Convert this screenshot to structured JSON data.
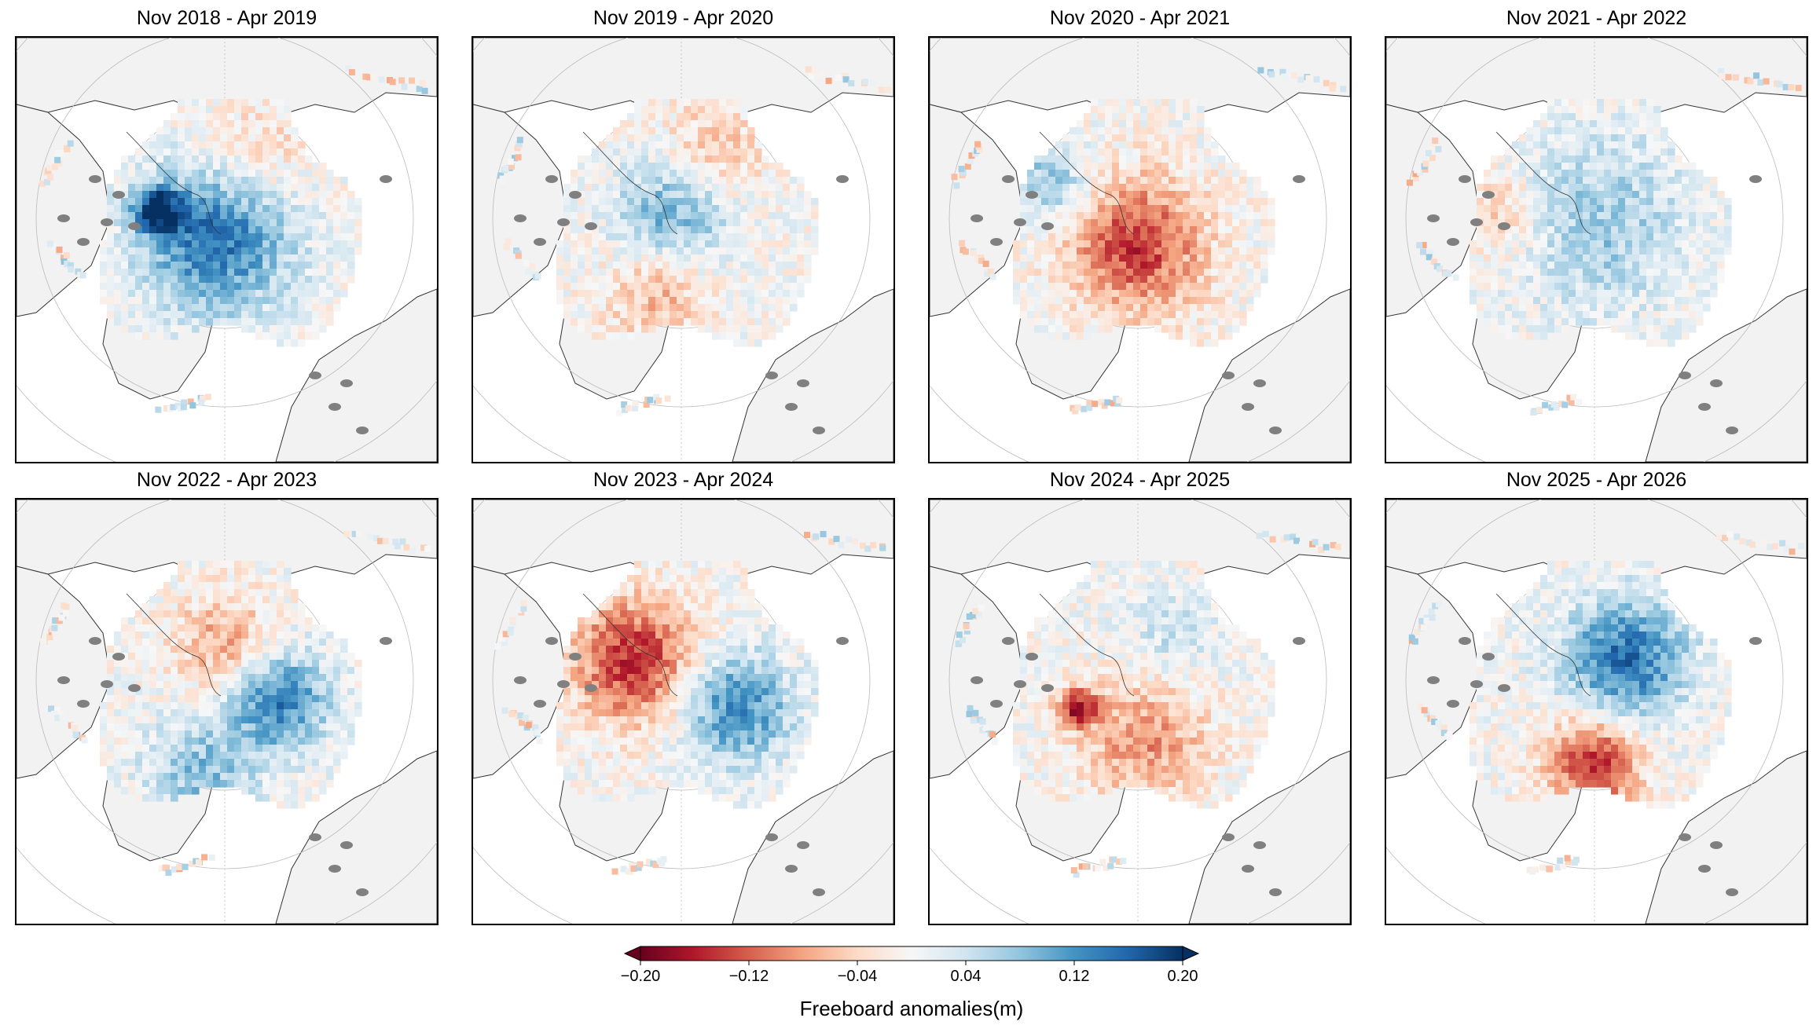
{
  "panels": [
    {
      "title": "Nov 2018 - Apr 2019",
      "pattern": "blue-atlantic"
    },
    {
      "title": "Nov 2019 - Apr 2020",
      "pattern": "mixed-blue-west"
    },
    {
      "title": "Nov 2020 - Apr 2021",
      "pattern": "red-atlantic"
    },
    {
      "title": "Nov 2021 - Apr 2022",
      "pattern": "light-blue"
    },
    {
      "title": "Nov 2022 - Apr 2023",
      "pattern": "blue-east"
    },
    {
      "title": "Nov 2023 - Apr 2024",
      "pattern": "red-west-blue-east"
    },
    {
      "title": "Nov 2024 - Apr 2025",
      "pattern": "light-red"
    },
    {
      "title": "Nov 2025 - Apr 2026",
      "pattern": "blue-center-red-atlantic"
    }
  ],
  "colorbar": {
    "label": "Freeboard anomalies(m)",
    "ticks": [
      "−0.20",
      "−0.12",
      "−0.04",
      "0.04",
      "0.12",
      "0.20"
    ],
    "min": -0.2,
    "max": 0.2,
    "colormap": "RdBu",
    "colors": [
      "#67001f",
      "#b2182b",
      "#d6604d",
      "#f4a582",
      "#fddbc7",
      "#f7f7f7",
      "#d1e5f0",
      "#92c5de",
      "#4393c3",
      "#2166ac",
      "#053061"
    ]
  },
  "map_colors": {
    "land": "#f2f2f2",
    "ocean": "#ffffff",
    "islands": "#808080",
    "coastline": "#333333",
    "graticule": "#bbbbbb"
  }
}
